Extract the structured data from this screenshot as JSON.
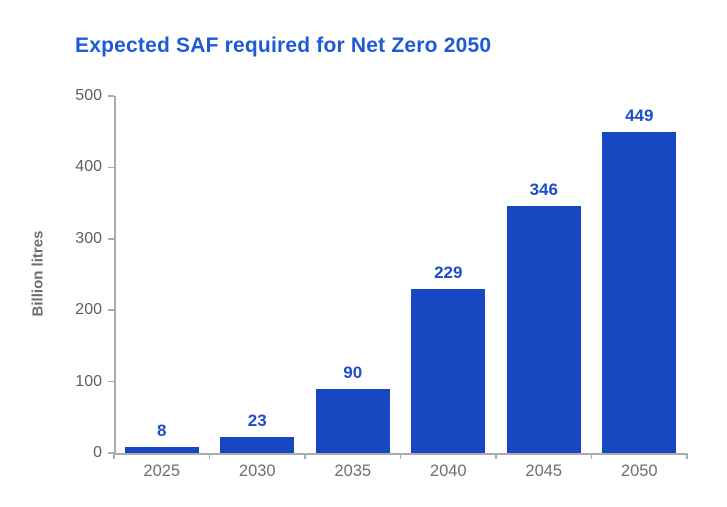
{
  "chart_data": {
    "type": "bar",
    "title": "Expected SAF required for Net Zero 2050",
    "categories": [
      "2025",
      "2030",
      "2035",
      "2040",
      "2045",
      "2050"
    ],
    "values": [
      8,
      23,
      90,
      229,
      346,
      449
    ],
    "xlabel": "",
    "ylabel": "Billion litres",
    "ylim": [
      0,
      500
    ],
    "yticks": [
      0,
      100,
      200,
      300,
      400,
      500
    ],
    "grid": false,
    "legend": "none",
    "colors": {
      "bar": "#1748c1",
      "value_label": "#1c4ecc",
      "title": "#1f5ad6",
      "ytick_text": "#5f5f5f",
      "xtick_text": "#6f6f6f",
      "ylabel_text": "#6e6e6e",
      "axis_line": "#ababab"
    }
  }
}
